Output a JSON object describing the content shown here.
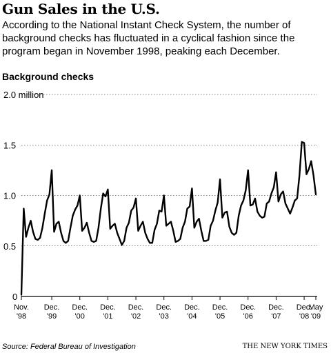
{
  "title": "Gun Sales in the U.S.",
  "subtitle": "According to the National Instant Check System, the number of background checks has fluctuated in a cyclical fashion since the program began in November 1998, peaking each December.",
  "source": "Source: Federal Bureau of Investigation",
  "credit": "THE NEW YORK TIMES",
  "colors": {
    "line": "#000000",
    "grid": "#000000",
    "background": "#ffffff"
  },
  "chart_data": {
    "type": "line",
    "title": "Gun Sales in the U.S.",
    "ylabel": "Background checks",
    "ylim": [
      0,
      2.0
    ],
    "grid": true,
    "y_ticks": [
      {
        "value": 0,
        "label": "0"
      },
      {
        "value": 0.5,
        "label": "0.5"
      },
      {
        "value": 1.0,
        "label": "1.0"
      },
      {
        "value": 1.5,
        "label": "1.5"
      },
      {
        "value": 2.0,
        "label": "2.0 million"
      }
    ],
    "x_ticks": [
      {
        "month": 0,
        "line1": "Nov.",
        "line2": "'98"
      },
      {
        "month": 13,
        "line1": "Dec.",
        "line2": "'99"
      },
      {
        "month": 25,
        "line1": "Dec.",
        "line2": "'00"
      },
      {
        "month": 37,
        "line1": "Dec.",
        "line2": "'01"
      },
      {
        "month": 49,
        "line1": "Dec.",
        "line2": "'02"
      },
      {
        "month": 61,
        "line1": "Dec.",
        "line2": "'03"
      },
      {
        "month": 73,
        "line1": "Dec.",
        "line2": "'04"
      },
      {
        "month": 85,
        "line1": "Dec.",
        "line2": "'05"
      },
      {
        "month": 97,
        "line1": "Dec.",
        "line2": "'06"
      },
      {
        "month": 109,
        "line1": "Dec.",
        "line2": "'07"
      },
      {
        "month": 121,
        "line1": "Dec.",
        "line2": "'08"
      },
      {
        "month": 126,
        "line1": "May",
        "line2": "'09"
      }
    ],
    "x_start": "1998-11",
    "x_end": "2009-05",
    "values": [
      0.02,
      0.87,
      0.59,
      0.68,
      0.75,
      0.64,
      0.57,
      0.56,
      0.58,
      0.68,
      0.82,
      0.95,
      1.01,
      1.25,
      0.64,
      0.72,
      0.74,
      0.63,
      0.55,
      0.53,
      0.55,
      0.68,
      0.8,
      0.86,
      0.9,
      1.0,
      0.65,
      0.68,
      0.73,
      0.63,
      0.55,
      0.54,
      0.55,
      0.68,
      0.87,
      1.02,
      0.99,
      1.06,
      0.67,
      0.7,
      0.72,
      0.63,
      0.57,
      0.51,
      0.55,
      0.68,
      0.73,
      0.85,
      0.88,
      0.97,
      0.65,
      0.7,
      0.74,
      0.63,
      0.57,
      0.53,
      0.53,
      0.66,
      0.72,
      0.85,
      0.84,
      1.0,
      0.7,
      0.72,
      0.74,
      0.65,
      0.54,
      0.55,
      0.57,
      0.68,
      0.74,
      0.87,
      0.89,
      1.07,
      0.68,
      0.74,
      0.77,
      0.65,
      0.55,
      0.55,
      0.56,
      0.7,
      0.75,
      0.85,
      0.93,
      1.16,
      0.78,
      0.83,
      0.84,
      0.69,
      0.63,
      0.61,
      0.63,
      0.8,
      0.9,
      0.95,
      1.05,
      1.25,
      0.9,
      0.91,
      0.97,
      0.84,
      0.8,
      0.78,
      0.79,
      0.92,
      0.94,
      1.02,
      1.08,
      1.23,
      0.94,
      1.01,
      1.04,
      0.92,
      0.87,
      0.82,
      0.88,
      0.95,
      0.97,
      1.2,
      1.53,
      1.52,
      1.21,
      1.26,
      1.34,
      1.2,
      1.01
    ]
  }
}
